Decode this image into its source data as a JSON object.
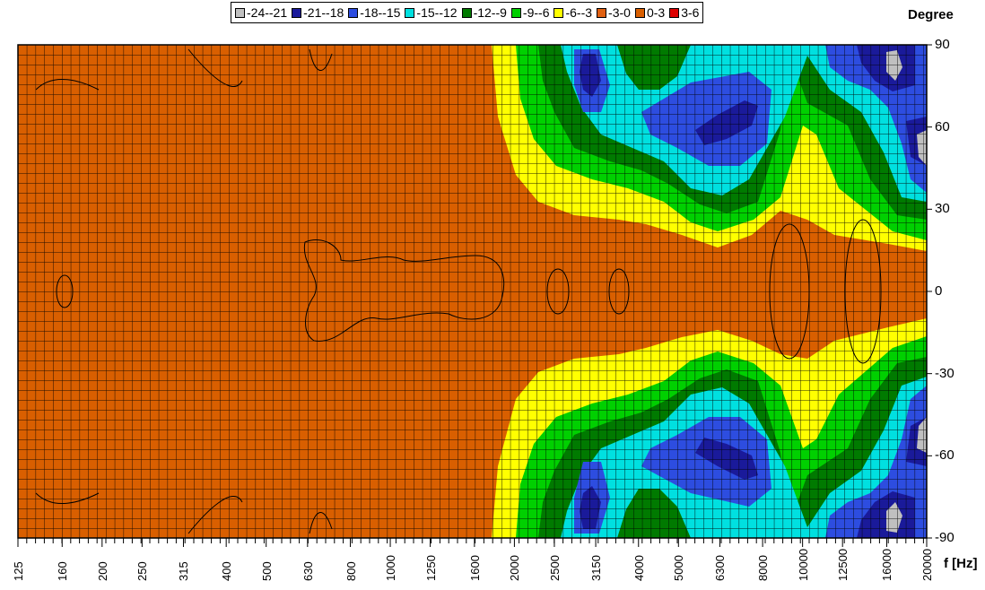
{
  "chart_data": {
    "type": "heatmap",
    "title": "",
    "xlabel": "f [Hz]",
    "ylabel": "Degree",
    "x_scale": "log",
    "x_ticks": [
      "125",
      "160",
      "200",
      "250",
      "315",
      "400",
      "500",
      "630",
      "800",
      "1000",
      "1250",
      "1600",
      "2000",
      "2500",
      "3150",
      "4000",
      "5000",
      "6300",
      "8000",
      "10000",
      "12500",
      "16000",
      "20000"
    ],
    "y_ticks": [
      "90",
      "60",
      "30",
      "0",
      "-30",
      "-60",
      "-90"
    ],
    "y_range": [
      -90,
      90
    ],
    "grid": true,
    "legend_position": "top",
    "legend": [
      {
        "label": "-24--21",
        "color": "#c0c0c0"
      },
      {
        "label": "-21--18",
        "color": "#1a1a9a"
      },
      {
        "label": "-18--15",
        "color": "#2d4de0"
      },
      {
        "label": "-15--12",
        "color": "#00e0e0"
      },
      {
        "label": "-12--9",
        "color": "#007a00"
      },
      {
        "label": "-9--6",
        "color": "#00d000"
      },
      {
        "label": "-6--3",
        "color": "#ffff00"
      },
      {
        "label": "-3-0",
        "color": "#e06010"
      },
      {
        "label": "0-3",
        "color": "#d95f00"
      },
      {
        "label": "3-6",
        "color": "#dd0000"
      }
    ],
    "levels": [
      {
        "range": "0-3 / -3-0",
        "freq_to": "1600",
        "description": "flat response all angles"
      },
      {
        "range": "-12--9",
        "freq": "4000",
        "angles": [
          90,
          -90
        ]
      },
      {
        "range": "-18--15",
        "freq": "6300",
        "angles": [
          65,
          -65
        ]
      },
      {
        "range": "-24--21",
        "freq": "16000",
        "angles": [
          85,
          50,
          -50,
          -85
        ]
      }
    ]
  }
}
